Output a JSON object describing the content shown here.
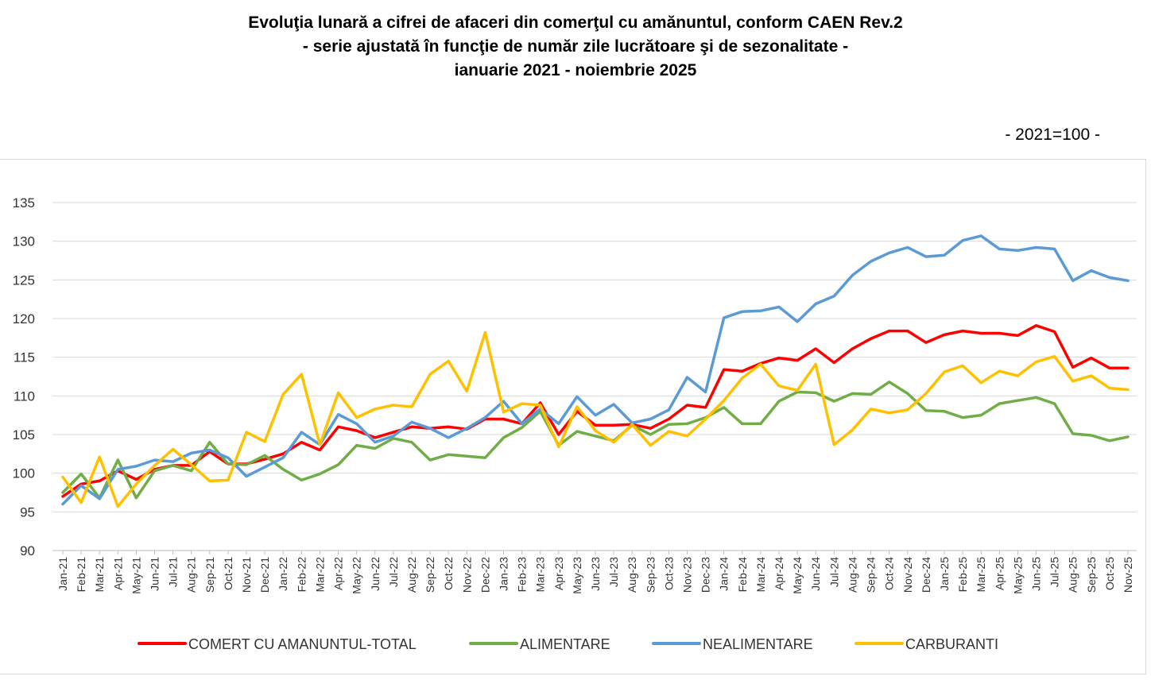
{
  "title": {
    "line1": "Evoluţia lunară a cifrei de afaceri din comerţul cu amănuntul, conform CAEN Rev.2",
    "line2": "- serie ajustată în funcţie de număr zile lucrătoare şi de sezonalitate -",
    "line3": "ianuarie 2021 - noiembrie 2025"
  },
  "unit_label": "- 2021=100 -",
  "chart_data": {
    "type": "line",
    "title": "Evoluţia lunară a cifrei de afaceri din comerţul cu amănuntul, conform CAEN Rev.2",
    "xlabel": "",
    "ylabel": "",
    "ylim": [
      90,
      135
    ],
    "yticks": [
      90,
      95,
      100,
      105,
      110,
      115,
      120,
      125,
      130,
      135
    ],
    "grid": true,
    "legend_position": "bottom",
    "categories": [
      "Jan-21",
      "Feb-21",
      "Mar-21",
      "Apr-21",
      "May-21",
      "Jun-21",
      "Jul-21",
      "Aug-21",
      "Sep-21",
      "Oct-21",
      "Nov-21",
      "Dec-21",
      "Jan-22",
      "Feb-22",
      "Mar-22",
      "Apr-22",
      "May-22",
      "Jun-22",
      "Jul-22",
      "Aug-22",
      "Sep-22",
      "Oct-22",
      "Nov-22",
      "Dec-22",
      "Jan-23",
      "Feb-23",
      "Mar-23",
      "Apr-23",
      "May-23",
      "Jun-23",
      "Jul-23",
      "Aug-23",
      "Sep-23",
      "Oct-23",
      "Nov-23",
      "Dec-23",
      "Jan-24",
      "Feb-24",
      "Mar-24",
      "Apr-24",
      "May-24",
      "Jun-24",
      "Jul-24",
      "Aug-24",
      "Sep-24",
      "Oct-24",
      "Nov-24",
      "Dec-24",
      "Jan-25",
      "Feb-25",
      "Mar-25",
      "Apr-25",
      "May-25",
      "Jun-25",
      "Jul-25",
      "Aug-25",
      "Sep-25",
      "Oct-25",
      "Nov-25"
    ],
    "series": [
      {
        "name": "COMERT CU AMANUNTUL-TOTAL",
        "color": "#ff0000",
        "values": [
          97.0,
          98.6,
          99.0,
          100.3,
          99.2,
          100.5,
          101.0,
          101.0,
          102.8,
          101.2,
          101.2,
          101.8,
          102.5,
          104.0,
          103.0,
          106.0,
          105.5,
          104.6,
          105.3,
          106.0,
          105.8,
          106.0,
          105.7,
          107.0,
          107.0,
          106.4,
          109.1,
          105.0,
          108.0,
          106.2,
          106.2,
          106.3,
          105.8,
          107.0,
          108.8,
          108.5,
          113.4,
          113.2,
          114.2,
          114.9,
          114.6,
          116.1,
          114.3,
          116.1,
          117.4,
          118.4,
          118.4,
          116.9,
          117.9,
          118.4,
          118.1,
          118.1,
          117.8,
          119.1,
          118.3,
          113.7,
          114.9,
          113.6,
          113.6
        ]
      },
      {
        "name": "ALIMENTARE",
        "color": "#70ad47",
        "values": [
          97.5,
          99.9,
          96.8,
          101.7,
          96.8,
          100.3,
          101.0,
          100.3,
          104.0,
          101.2,
          101.1,
          102.3,
          100.5,
          99.1,
          99.9,
          101.1,
          103.6,
          103.2,
          104.5,
          104.0,
          101.7,
          102.4,
          102.2,
          102.0,
          104.6,
          105.9,
          108.0,
          103.6,
          105.4,
          104.8,
          104.2,
          106.2,
          105.0,
          106.3,
          106.4,
          107.2,
          108.5,
          106.4,
          106.4,
          109.3,
          110.5,
          110.4,
          109.3,
          110.3,
          110.2,
          111.8,
          110.3,
          108.1,
          108.0,
          107.2,
          107.5,
          109.0,
          109.4,
          109.8,
          109.0,
          105.1,
          104.9,
          104.2,
          104.7
        ]
      },
      {
        "name": "NEALIMENTARE",
        "color": "#5b9bd5",
        "values": [
          96.0,
          98.4,
          96.7,
          100.5,
          100.9,
          101.7,
          101.5,
          102.6,
          103.0,
          102.0,
          99.6,
          100.8,
          102.0,
          105.3,
          103.7,
          107.6,
          106.4,
          104.0,
          104.8,
          106.6,
          105.8,
          104.6,
          105.8,
          107.2,
          109.3,
          106.4,
          108.3,
          106.4,
          109.9,
          107.5,
          108.9,
          106.5,
          107.0,
          108.2,
          112.4,
          110.5,
          120.1,
          120.9,
          121.0,
          121.5,
          119.6,
          121.9,
          122.9,
          125.6,
          127.4,
          128.5,
          129.2,
          128.0,
          128.2,
          130.1,
          130.7,
          129.0,
          128.8,
          129.2,
          129.0,
          124.9,
          126.2,
          125.3,
          124.9
        ]
      },
      {
        "name": "CARBURANTI",
        "color": "#ffc000",
        "values": [
          99.5,
          96.2,
          102.1,
          95.7,
          98.6,
          101.0,
          103.1,
          101.1,
          99.0,
          99.1,
          105.3,
          104.1,
          110.2,
          112.8,
          103.7,
          110.4,
          107.2,
          108.3,
          108.8,
          108.6,
          112.8,
          114.5,
          110.6,
          118.2,
          107.9,
          109.0,
          108.8,
          103.4,
          108.6,
          105.5,
          104.0,
          106.3,
          103.6,
          105.4,
          104.8,
          107.0,
          109.4,
          112.3,
          114.1,
          111.3,
          110.7,
          114.1,
          103.7,
          105.6,
          108.3,
          107.8,
          108.2,
          110.3,
          113.1,
          113.9,
          111.7,
          113.2,
          112.6,
          114.4,
          115.1,
          111.9,
          112.6,
          111.0,
          110.8
        ]
      }
    ]
  }
}
